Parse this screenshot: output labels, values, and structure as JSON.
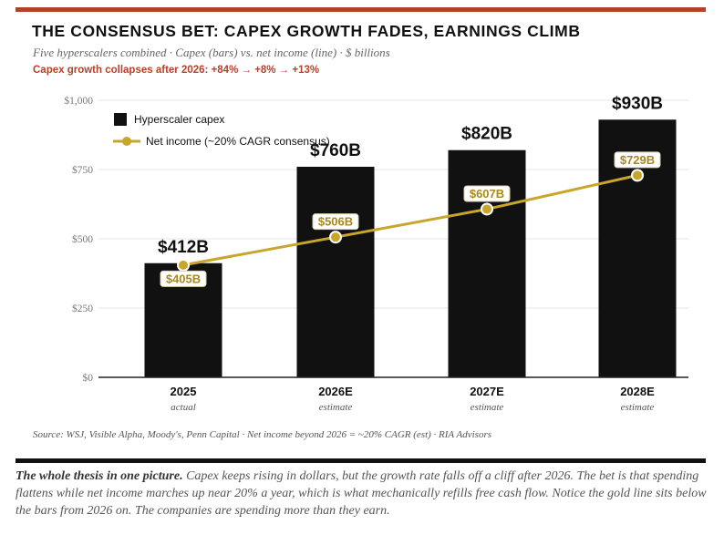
{
  "header": {
    "title": "THE CONSENSUS BET: CAPEX GROWTH FADES, EARNINGS CLIMB",
    "subtitle": "Five hyperscalers combined · Capex (bars) vs. net income (line) · $ billions",
    "highlight": "Capex growth collapses after 2026: +84% → +8% → +13%"
  },
  "source": "Source: WSJ, Visible Alpha, Moody's, Penn Capital · Net income beyond 2026 = ~20% CAGR (est) · RIA Advisors",
  "caption": {
    "lead": "The whole thesis in one picture.",
    "body": " Capex keeps rising in dollars, but the growth rate falls off a cliff after 2026. The bet is that spending flattens while net income marches up near 20% a year, which is what mechanically refills free cash flow. Notice the gold line sits below the bars from 2026 on. The companies are spending more than they earn."
  },
  "colors": {
    "accent": "#b5412b",
    "bar": "#111111",
    "line": "#c8a62c",
    "line_label": "#a8891e"
  },
  "chart_data": {
    "type": "bar",
    "categories": [
      "2025",
      "2026E",
      "2027E",
      "2028E"
    ],
    "category_notes": [
      "actual",
      "estimate",
      "estimate",
      "estimate"
    ],
    "ylim": [
      0,
      1000
    ],
    "yticks": [
      0,
      250,
      500,
      750,
      1000
    ],
    "ytick_labels": [
      "$0",
      "$250",
      "$500",
      "$750",
      "$1,000"
    ],
    "grid": true,
    "legend_position": "top-left",
    "series": [
      {
        "name": "Hyperscaler capex",
        "kind": "bar",
        "values": [
          412,
          760,
          820,
          930
        ],
        "labels": [
          "$412B",
          "$760B",
          "$820B",
          "$930B"
        ]
      },
      {
        "name": "Net income (~20% CAGR consensus)",
        "kind": "line",
        "values": [
          405,
          506,
          607,
          729
        ],
        "labels": [
          "$405B",
          "$506B",
          "$607B",
          "$729B"
        ]
      }
    ]
  }
}
